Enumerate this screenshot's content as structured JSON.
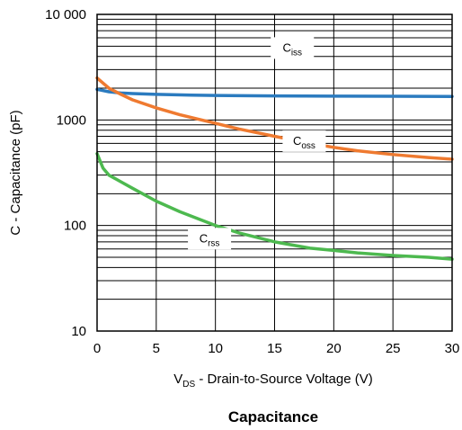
{
  "chart_data": {
    "type": "line",
    "title": "Capacitance",
    "xlabel": {
      "main": "V",
      "sub": "DS",
      "rest": " - Drain-to-Source Voltage (V)"
    },
    "ylabel": "C - Capacitance (pF)",
    "xlim": [
      0,
      30
    ],
    "ylim": [
      10,
      10000
    ],
    "y_scale": "log",
    "grid": true,
    "x_ticks": [
      {
        "value": 0,
        "label": "0"
      },
      {
        "value": 5,
        "label": "5"
      },
      {
        "value": 10,
        "label": "10"
      },
      {
        "value": 15,
        "label": "15"
      },
      {
        "value": 20,
        "label": "20"
      },
      {
        "value": 25,
        "label": "25"
      },
      {
        "value": 30,
        "label": "30"
      }
    ],
    "y_ticks": [
      {
        "value": 10,
        "label": "10"
      },
      {
        "value": 100,
        "label": "100"
      },
      {
        "value": 1000,
        "label": "1000"
      },
      {
        "value": 10000,
        "label": "10 000"
      }
    ],
    "series": [
      {
        "name": "C",
        "name_sub": "iss",
        "color": "#2b7bbf",
        "label_at": {
          "x": 16.5,
          "y": 4800
        },
        "points": [
          [
            0,
            1950
          ],
          [
            1,
            1850
          ],
          [
            2,
            1800
          ],
          [
            3,
            1780
          ],
          [
            5,
            1750
          ],
          [
            8,
            1720
          ],
          [
            10,
            1705
          ],
          [
            15,
            1690
          ],
          [
            20,
            1680
          ],
          [
            25,
            1675
          ],
          [
            30,
            1670
          ]
        ]
      },
      {
        "name": "C",
        "name_sub": "oss",
        "color": "#ef7a30",
        "label_at": {
          "x": 17.5,
          "y": 630
        },
        "points": [
          [
            0,
            2500
          ],
          [
            1,
            2000
          ],
          [
            2,
            1750
          ],
          [
            3,
            1550
          ],
          [
            5,
            1300
          ],
          [
            7,
            1120
          ],
          [
            10,
            930
          ],
          [
            12,
            820
          ],
          [
            15,
            700
          ],
          [
            18,
            600
          ],
          [
            20,
            550
          ],
          [
            22,
            510
          ],
          [
            25,
            470
          ],
          [
            28,
            440
          ],
          [
            30,
            425
          ]
        ]
      },
      {
        "name": "C",
        "name_sub": "rss",
        "color": "#4db94f",
        "label_at": {
          "x": 9.5,
          "y": 75
        },
        "points": [
          [
            0,
            480
          ],
          [
            0.5,
            350
          ],
          [
            1,
            300
          ],
          [
            2,
            260
          ],
          [
            3,
            225
          ],
          [
            5,
            170
          ],
          [
            7,
            135
          ],
          [
            10,
            100
          ],
          [
            12,
            85
          ],
          [
            15,
            70
          ],
          [
            18,
            61
          ],
          [
            20,
            58
          ],
          [
            22,
            55
          ],
          [
            25,
            52
          ],
          [
            28,
            50
          ],
          [
            30,
            48
          ]
        ]
      }
    ]
  }
}
